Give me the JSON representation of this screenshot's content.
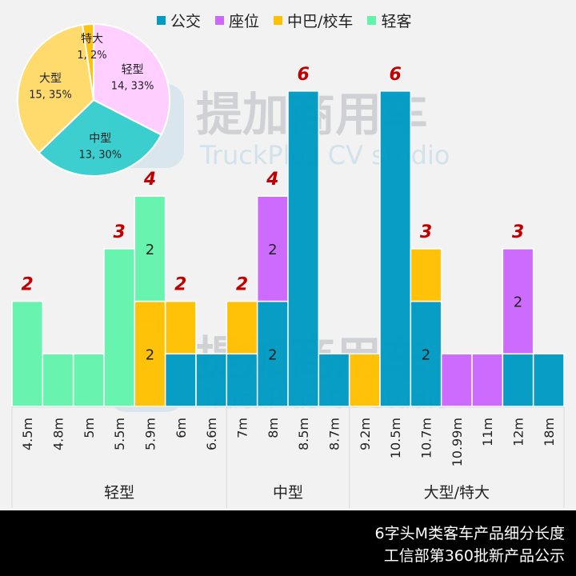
{
  "legend": [
    {
      "name": "公交",
      "color": "#009ac2"
    },
    {
      "name": "座位",
      "color": "#cc66ff"
    },
    {
      "name": "中巴/校车",
      "color": "#ffc000"
    },
    {
      "name": "轻客",
      "color": "#63f4ac"
    }
  ],
  "watermark": {
    "cn": "提加商用车",
    "en": "TruckPlus CV studio"
  },
  "footer": {
    "line1": "6字头M类客车产品细分长度",
    "line2": "工信部第360批新产品公示"
  },
  "chart_data": [
    {
      "type": "bar",
      "stacked": true,
      "title": "6字头M类客车产品细分长度",
      "xlabel": "",
      "ylabel": "",
      "ylim": [
        0,
        6
      ],
      "grid": false,
      "legend_position": "top",
      "categories": [
        "4.5m",
        "4.8m",
        "5m",
        "5.5m",
        "5.9m",
        "6m",
        "6.6m",
        "7m",
        "8m",
        "8.5m",
        "8.7m",
        "9.2m",
        "10.5m",
        "10.7m",
        "10.99m",
        "11m",
        "12m",
        "18m"
      ],
      "groups": [
        {
          "label": "轻型",
          "categories": [
            "4.5m",
            "4.8m",
            "5m",
            "5.5m",
            "5.9m",
            "6m",
            "6.6m"
          ]
        },
        {
          "label": "中型",
          "categories": [
            "7m",
            "8m",
            "8.5m",
            "8.7m"
          ]
        },
        {
          "label": "大型/特大",
          "categories": [
            "9.2m",
            "10.5m",
            "10.7m",
            "10.99m",
            "11m",
            "12m",
            "18m"
          ]
        }
      ],
      "series": [
        {
          "name": "公交",
          "color": "#009ac2",
          "values": [
            0,
            0,
            0,
            0,
            0,
            1,
            1,
            1,
            2,
            6,
            1,
            0,
            6,
            2,
            0,
            0,
            1,
            1
          ]
        },
        {
          "name": "座位",
          "color": "#cc66ff",
          "values": [
            0,
            0,
            0,
            0,
            0,
            0,
            0,
            0,
            2,
            0,
            0,
            0,
            0,
            0,
            1,
            1,
            2,
            0
          ]
        },
        {
          "name": "中巴/校车",
          "color": "#ffc000",
          "values": [
            0,
            0,
            0,
            0,
            2,
            1,
            0,
            1,
            0,
            0,
            0,
            1,
            0,
            1,
            0,
            0,
            0,
            0
          ]
        },
        {
          "name": "轻客",
          "color": "#63f4ac",
          "values": [
            2,
            1,
            1,
            3,
            2,
            0,
            0,
            0,
            0,
            0,
            0,
            0,
            0,
            0,
            0,
            0,
            0,
            0
          ]
        }
      ],
      "total_labels": [
        {
          "category": "4.5m",
          "value": 2
        },
        {
          "category": "5.5m",
          "value": 3
        },
        {
          "category": "5.9m",
          "value": 4
        },
        {
          "category": "6m",
          "value": 2
        },
        {
          "category": "7m",
          "value": 2
        },
        {
          "category": "8m",
          "value": 4
        },
        {
          "category": "8.5m",
          "value": 6
        },
        {
          "category": "10.5m",
          "value": 6
        },
        {
          "category": "10.7m",
          "value": 3
        },
        {
          "category": "12m",
          "value": 3
        }
      ],
      "segment_labels": [
        {
          "category": "5.9m",
          "series": "轻客",
          "value": 2
        },
        {
          "category": "5.9m",
          "series": "中巴/校车",
          "value": 2
        },
        {
          "category": "8m",
          "series": "座位",
          "value": 2
        },
        {
          "category": "8m",
          "series": "公交",
          "value": 2
        },
        {
          "category": "10.7m",
          "series": "公交",
          "value": 2
        },
        {
          "category": "12m",
          "series": "座位",
          "value": 2
        }
      ],
      "total_label_color": "#c00000"
    },
    {
      "type": "pie",
      "slices": [
        {
          "label": "轻型",
          "value": 14,
          "percent": 33,
          "color": "#ffccff"
        },
        {
          "label": "中型",
          "value": 13,
          "percent": 30,
          "color": "#33cccc"
        },
        {
          "label": "大型",
          "value": 15,
          "percent": 35,
          "color": "#ffd966"
        },
        {
          "label": "特大",
          "value": 1,
          "percent": 2,
          "color": "#ffc000"
        }
      ]
    }
  ]
}
